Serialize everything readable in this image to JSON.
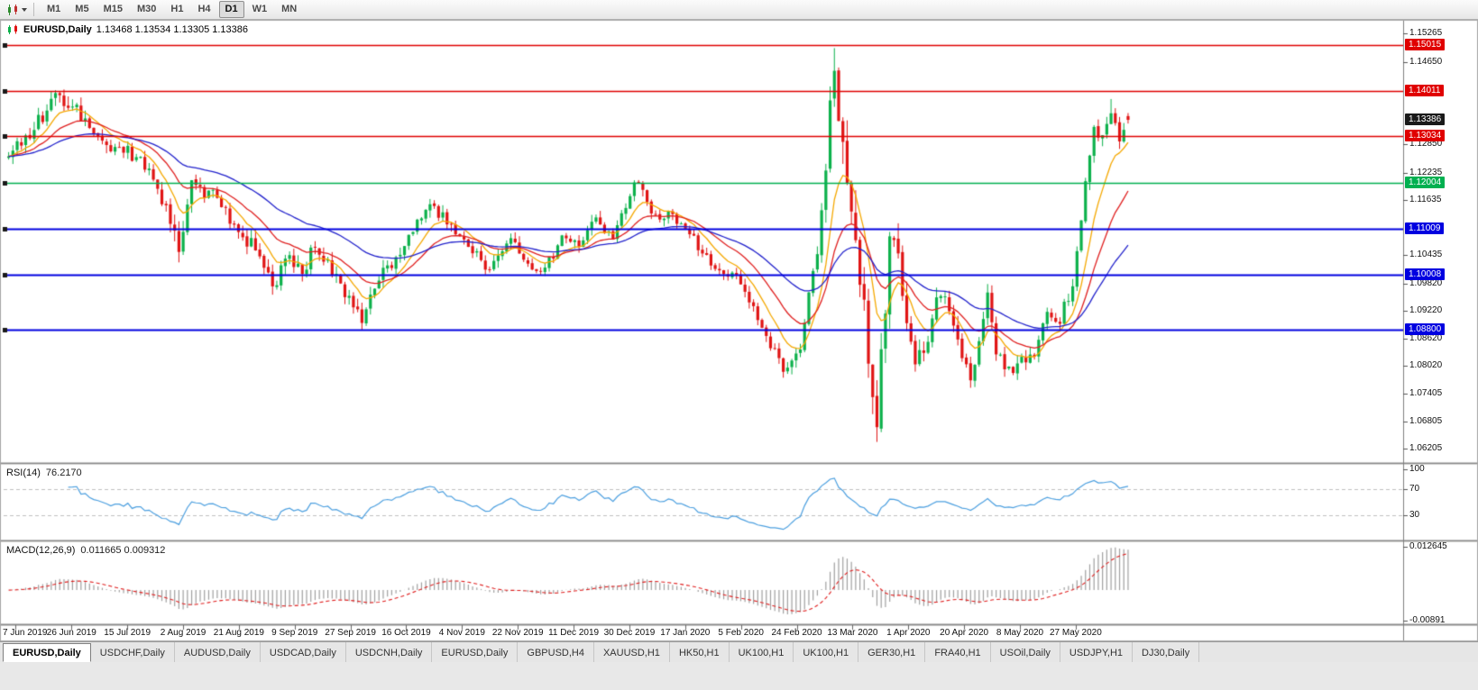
{
  "toolbar": {
    "timeframes": [
      "M1",
      "M5",
      "M15",
      "M30",
      "H1",
      "H4",
      "D1",
      "W1",
      "MN"
    ],
    "active_timeframe": "D1"
  },
  "window": {
    "title_symbol": "EURUSD,Daily",
    "title_ohlc": "1.13468 1.13534 1.13305 1.13386"
  },
  "indicators": {
    "rsi": {
      "label": "RSI(14)",
      "value": "76.2170",
      "axis_labels": [
        100,
        70,
        30
      ],
      "levels": [
        70,
        30
      ],
      "line_color": "#4da0e0"
    },
    "macd": {
      "label": "MACD(12,26,9)",
      "values": "0.011665 0.009312",
      "histogram_color": "#a0a0a0",
      "signal_color": "#e02020"
    }
  },
  "date_axis": [
    "7 Jun 2019",
    "26 Jun 2019",
    "15 Jul 2019",
    "2 Aug 2019",
    "21 Aug 2019",
    "9 Sep 2019",
    "27 Sep 2019",
    "16 Oct 2019",
    "4 Nov 2019",
    "22 Nov 2019",
    "11 Dec 2019",
    "30 Dec 2019",
    "17 Jan 2020",
    "5 Feb 2020",
    "24 Feb 2020",
    "13 Mar 2020",
    "1 Apr 2020",
    "20 Apr 2020",
    "8 May 2020",
    "27 May 2020"
  ],
  "tabs": {
    "active_index": 0,
    "items": [
      "EURUSD,Daily",
      "USDCHF,Daily",
      "AUDUSD,Daily",
      "USDCAD,Daily",
      "USDCNH,Daily",
      "EURUSD,Daily",
      "GBPUSD,H4",
      "XAUUSD,H1",
      "HK50,H1",
      "UK100,H1",
      "UK100,H1",
      "GER30,H1",
      "FRA40,H1",
      "USOil,Daily",
      "USDJPY,H1",
      "DJ30,Daily"
    ]
  },
  "chart_data": {
    "type": "candlestick",
    "symbol": "EURUSD",
    "timeframe": "Daily",
    "bars": 264,
    "last_ohlc": {
      "open": 1.13468,
      "high": 1.13534,
      "low": 1.13305,
      "close": 1.13386
    },
    "current_price": 1.13386,
    "up_color": "#0cb14b",
    "down_color": "#e01414",
    "price_axis": {
      "min": 1.059,
      "max": 1.1545,
      "labels": [
        1.15265,
        1.1465,
        1.1285,
        1.12235,
        1.11635,
        1.10435,
        1.0982,
        1.0922,
        1.0862,
        1.0802,
        1.07405,
        1.06805,
        1.06205
      ],
      "badges": [
        {
          "value": 1.15015,
          "color": "#e00000"
        },
        {
          "value": 1.14011,
          "color": "#e00000"
        },
        {
          "value": 1.13386,
          "color": "#1a1a1a"
        },
        {
          "value": 1.13034,
          "color": "#e00000"
        },
        {
          "value": 1.12004,
          "color": "#00b050"
        },
        {
          "value": 1.11009,
          "color": "#0000e0"
        },
        {
          "value": 1.10008,
          "color": "#0000e0"
        },
        {
          "value": 1.088,
          "color": "#0000e0"
        }
      ]
    },
    "hlines": [
      {
        "price": 1.15015,
        "color": "#e00000",
        "width": 1.4
      },
      {
        "price": 1.14011,
        "color": "#e00000",
        "width": 1.4
      },
      {
        "price": 1.13034,
        "color": "#e00000",
        "width": 1.4
      },
      {
        "price": 1.12004,
        "color": "#00b050",
        "width": 1.6
      },
      {
        "price": 1.11009,
        "color": "#0000e0",
        "width": 1.8
      },
      {
        "price": 1.10008,
        "color": "#0000e0",
        "width": 1.8
      },
      {
        "price": 1.088,
        "color": "#0000e0",
        "width": 1.8
      }
    ],
    "moving_averages": [
      {
        "type": "ema",
        "period": 9,
        "color": "#f5a800"
      },
      {
        "type": "ema",
        "period": 20,
        "color": "#e02020"
      },
      {
        "type": "ema",
        "period": 45,
        "color": "#2222cc"
      }
    ],
    "price_path": [
      [
        0,
        1.1272,
        0.0035
      ],
      [
        5,
        1.1312,
        0.0035
      ],
      [
        12,
        1.1392,
        0.004
      ],
      [
        16,
        1.1358,
        0.0035
      ],
      [
        22,
        1.1288,
        0.0034
      ],
      [
        28,
        1.1272,
        0.003
      ],
      [
        34,
        1.1215,
        0.0034
      ],
      [
        40,
        1.1065,
        0.0045
      ],
      [
        43,
        1.1205,
        0.0046
      ],
      [
        48,
        1.1172,
        0.0035
      ],
      [
        54,
        1.1092,
        0.0035
      ],
      [
        58,
        1.1062,
        0.0034
      ],
      [
        62,
        1.0975,
        0.004
      ],
      [
        66,
        1.1035,
        0.0036
      ],
      [
        69,
        1.1005,
        0.0034
      ],
      [
        72,
        1.1068,
        0.0046
      ],
      [
        76,
        1.1015,
        0.0035
      ],
      [
        80,
        1.0942,
        0.0034
      ],
      [
        83,
        1.0905,
        0.0034
      ],
      [
        86,
        1.0982,
        0.0034
      ],
      [
        92,
        1.1042,
        0.003
      ],
      [
        98,
        1.1152,
        0.0034
      ],
      [
        104,
        1.1112,
        0.003
      ],
      [
        108,
        1.1072,
        0.0028
      ],
      [
        113,
        1.1012,
        0.0028
      ],
      [
        118,
        1.1072,
        0.0028
      ],
      [
        122,
        1.1022,
        0.0026
      ],
      [
        126,
        1.1012,
        0.0026
      ],
      [
        130,
        1.1082,
        0.0026
      ],
      [
        134,
        1.1062,
        0.0026
      ],
      [
        138,
        1.1122,
        0.003
      ],
      [
        142,
        1.1082,
        0.0024
      ],
      [
        146,
        1.1182,
        0.0026
      ],
      [
        148,
        1.1212,
        0.0028
      ],
      [
        152,
        1.1122,
        0.0026
      ],
      [
        156,
        1.1132,
        0.0024
      ],
      [
        160,
        1.1092,
        0.0024
      ],
      [
        165,
        1.1022,
        0.0024
      ],
      [
        171,
        1.0998,
        0.0024
      ],
      [
        176,
        1.0912,
        0.0026
      ],
      [
        182,
        1.0792,
        0.0028
      ],
      [
        186,
        1.0852,
        0.0034
      ],
      [
        190,
        1.1052,
        0.0062
      ],
      [
        194,
        1.1452,
        0.0082
      ],
      [
        196,
        1.1282,
        0.0092
      ],
      [
        199,
        1.1112,
        0.0092
      ],
      [
        202,
        1.0832,
        0.0092
      ],
      [
        204,
        1.0692,
        0.0082
      ],
      [
        207,
        1.1082,
        0.0082
      ],
      [
        209,
        1.1032,
        0.0062
      ],
      [
        213,
        1.0802,
        0.0052
      ],
      [
        216,
        1.0862,
        0.0042
      ],
      [
        219,
        1.0972,
        0.004
      ],
      [
        223,
        1.0862,
        0.0038
      ],
      [
        226,
        1.0772,
        0.0038
      ],
      [
        230,
        1.0952,
        0.0042
      ],
      [
        232,
        1.0842,
        0.0038
      ],
      [
        235,
        1.0792,
        0.0036
      ],
      [
        238,
        1.0822,
        0.0034
      ],
      [
        241,
        1.0812,
        0.0032
      ],
      [
        244,
        1.0918,
        0.0032
      ],
      [
        247,
        1.0902,
        0.003
      ],
      [
        250,
        1.0982,
        0.0032
      ],
      [
        252,
        1.1134,
        0.0036
      ],
      [
        255,
        1.1337,
        0.0038
      ],
      [
        257,
        1.1292,
        0.0034
      ],
      [
        259,
        1.1362,
        0.0036
      ],
      [
        261,
        1.1302,
        0.0032
      ],
      [
        263,
        1.13386,
        0.0026
      ]
    ],
    "overrides": {
      "12": {
        "h": 1.14
      },
      "83": {
        "l": 1.0879
      },
      "194": {
        "h": 1.1495
      },
      "204": {
        "l": 1.0636
      },
      "259": {
        "h": 1.1384
      },
      "263": {
        "o": 1.13468,
        "h": 1.13534,
        "l": 1.13305,
        "c": 1.13386
      }
    },
    "rsi": {
      "period": 14,
      "last": 76.217,
      "range": [
        0,
        100
      ],
      "levels": [
        70,
        30
      ]
    },
    "macd": {
      "fast": 12,
      "slow": 26,
      "signal": 9,
      "last": 0.011665,
      "last_signal": 0.009312,
      "axis_max": 0.012645,
      "axis_min": -0.00891
    }
  }
}
